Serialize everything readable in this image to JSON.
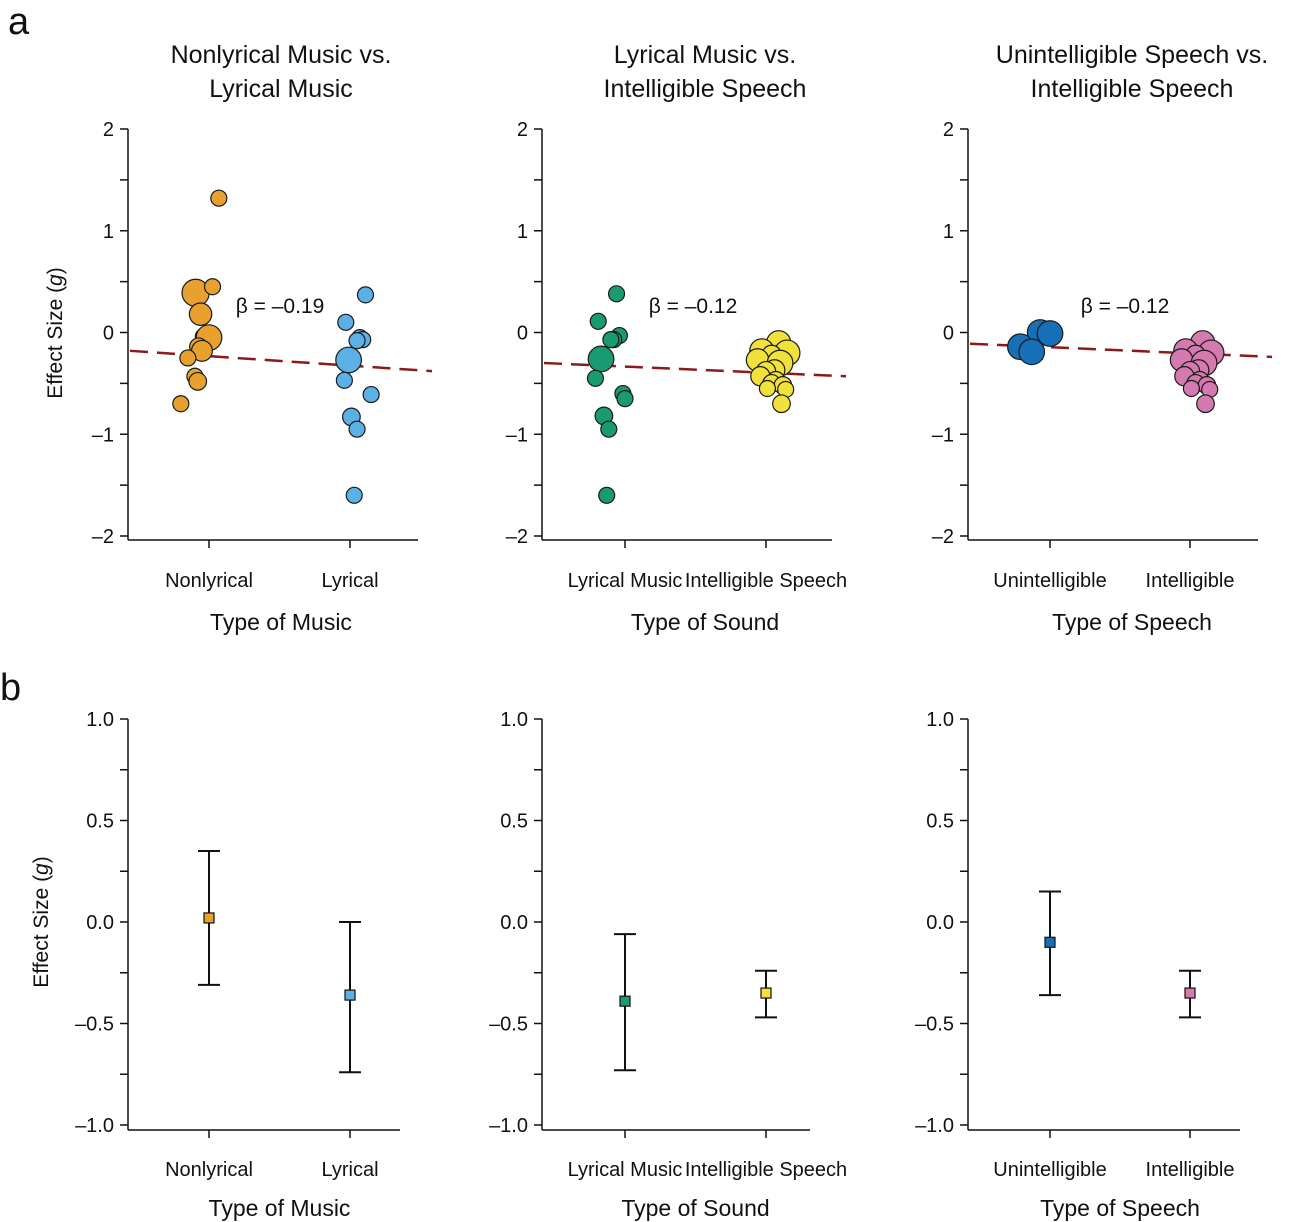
{
  "panel_letters": [
    "a",
    "b"
  ],
  "y_axis_title": "Effect Size (",
  "y_axis_italic": "g",
  "y_axis_close": ")",
  "chart_data": [
    {
      "panel": "a",
      "type": "scatter",
      "title": [
        "Nonlyrical Music vs.",
        "Lyrical Music"
      ],
      "xlabel": "Type of Music",
      "categories": [
        "Nonlyrical",
        "Lyrical"
      ],
      "ylim": [
        -2,
        2
      ],
      "yticks": [
        -2,
        -1,
        0,
        1,
        2
      ],
      "beta_label": "β = –0.19",
      "regression": {
        "y_left": -0.18,
        "y_right": -0.38,
        "color": "#8B1A1A"
      },
      "series": [
        {
          "category": "Nonlyrical",
          "color": "#E8A12E",
          "points": [
            {
              "x": 0.14,
              "y": 1.32,
              "s": 1
            },
            {
              "x": -0.19,
              "y": 0.39,
              "s": 1.7
            },
            {
              "x": 0.05,
              "y": 0.45,
              "s": 1
            },
            {
              "x": -0.12,
              "y": 0.18,
              "s": 1.4
            },
            {
              "x": -0.08,
              "y": -0.04,
              "s": 1
            },
            {
              "x": 0.0,
              "y": -0.05,
              "s": 1.6
            },
            {
              "x": -0.15,
              "y": -0.14,
              "s": 1.1
            },
            {
              "x": -0.1,
              "y": -0.18,
              "s": 1.3
            },
            {
              "x": -0.3,
              "y": -0.25,
              "s": 1
            },
            {
              "x": -0.2,
              "y": -0.43,
              "s": 1
            },
            {
              "x": -0.16,
              "y": -0.48,
              "s": 1.1
            },
            {
              "x": -0.4,
              "y": -0.7,
              "s": 1
            }
          ]
        },
        {
          "category": "Lyrical",
          "color": "#5BB0E6",
          "points": [
            {
              "x": 0.22,
              "y": 0.37,
              "s": 1
            },
            {
              "x": -0.06,
              "y": 0.1,
              "s": 1
            },
            {
              "x": 0.14,
              "y": -0.05,
              "s": 1
            },
            {
              "x": 0.18,
              "y": -0.07,
              "s": 1
            },
            {
              "x": 0.1,
              "y": -0.08,
              "s": 1
            },
            {
              "x": -0.02,
              "y": -0.27,
              "s": 1.6
            },
            {
              "x": -0.08,
              "y": -0.47,
              "s": 1
            },
            {
              "x": 0.3,
              "y": -0.61,
              "s": 1
            },
            {
              "x": 0.02,
              "y": -0.83,
              "s": 1.1
            },
            {
              "x": 0.1,
              "y": -0.95,
              "s": 1
            },
            {
              "x": 0.06,
              "y": -1.6,
              "s": 1
            }
          ]
        }
      ]
    },
    {
      "panel": "a",
      "type": "scatter",
      "title": [
        "Lyrical Music vs.",
        "Intelligible Speech"
      ],
      "xlabel": "Type of Sound",
      "categories": [
        "Lyrical Music",
        "Intelligible Speech"
      ],
      "ylim": [
        -2,
        2
      ],
      "yticks": [
        -2,
        -1,
        0,
        1,
        2
      ],
      "beta_label": "β = –0.12",
      "regression": {
        "y_left": -0.3,
        "y_right": -0.43,
        "color": "#8B1A1A"
      },
      "series": [
        {
          "category": "Lyrical Music",
          "color": "#1A9A70",
          "points": [
            {
              "x": -0.12,
              "y": 0.38,
              "s": 1
            },
            {
              "x": -0.38,
              "y": 0.11,
              "s": 1
            },
            {
              "x": -0.08,
              "y": -0.03,
              "s": 1
            },
            {
              "x": -0.16,
              "y": -0.07,
              "s": 1
            },
            {
              "x": -0.2,
              "y": -0.07,
              "s": 1
            },
            {
              "x": -0.34,
              "y": -0.26,
              "s": 1.6
            },
            {
              "x": -0.42,
              "y": -0.45,
              "s": 1
            },
            {
              "x": -0.03,
              "y": -0.6,
              "s": 1
            },
            {
              "x": 0.0,
              "y": -0.65,
              "s": 1
            },
            {
              "x": -0.3,
              "y": -0.82,
              "s": 1.1
            },
            {
              "x": -0.23,
              "y": -0.95,
              "s": 1
            },
            {
              "x": -0.26,
              "y": -1.6,
              "s": 1
            }
          ]
        },
        {
          "category": "Intelligible Speech",
          "color": "#F1E13C",
          "points": [
            {
              "x": 0.18,
              "y": -0.1,
              "s": 1.5
            },
            {
              "x": -0.06,
              "y": -0.18,
              "s": 1.5
            },
            {
              "x": 0.3,
              "y": -0.2,
              "s": 1.6
            },
            {
              "x": 0.08,
              "y": -0.22,
              "s": 1.2
            },
            {
              "x": -0.12,
              "y": -0.27,
              "s": 1.4
            },
            {
              "x": 0.2,
              "y": -0.3,
              "s": 1.6
            },
            {
              "x": 0.12,
              "y": -0.37,
              "s": 1.3
            },
            {
              "x": 0.0,
              "y": -0.38,
              "s": 1.2
            },
            {
              "x": -0.08,
              "y": -0.43,
              "s": 1.2
            },
            {
              "x": 0.14,
              "y": -0.47,
              "s": 1.1
            },
            {
              "x": 0.08,
              "y": -0.5,
              "s": 1.1
            },
            {
              "x": 0.24,
              "y": -0.52,
              "s": 1.1
            },
            {
              "x": 0.28,
              "y": -0.56,
              "s": 1
            },
            {
              "x": 0.02,
              "y": -0.55,
              "s": 1
            },
            {
              "x": 0.22,
              "y": -0.7,
              "s": 1.1
            }
          ]
        }
      ]
    },
    {
      "panel": "a",
      "type": "scatter",
      "title": [
        "Unintelligible Speech vs.",
        "Intelligible Speech"
      ],
      "xlabel": "Type of Speech",
      "categories": [
        "Unintelligible",
        "Intelligible"
      ],
      "ylim": [
        -2,
        2
      ],
      "yticks": [
        -2,
        -1,
        0,
        1,
        2
      ],
      "beta_label": "β = –0.12",
      "regression": {
        "y_left": -0.11,
        "y_right": -0.24,
        "color": "#8B1A1A"
      },
      "series": [
        {
          "category": "Unintelligible",
          "color": "#1670B8",
          "points": [
            {
              "x": -0.14,
              "y": 0.0,
              "s": 1.6
            },
            {
              "x": 0.0,
              "y": -0.01,
              "s": 1.6
            },
            {
              "x": -0.42,
              "y": -0.14,
              "s": 1.6
            },
            {
              "x": -0.26,
              "y": -0.19,
              "s": 1.6
            }
          ]
        },
        {
          "category": "Intelligible",
          "color": "#D47AAE",
          "points": [
            {
              "x": 0.18,
              "y": -0.1,
              "s": 1.5
            },
            {
              "x": -0.06,
              "y": -0.18,
              "s": 1.5
            },
            {
              "x": 0.3,
              "y": -0.2,
              "s": 1.6
            },
            {
              "x": 0.08,
              "y": -0.22,
              "s": 1.2
            },
            {
              "x": -0.12,
              "y": -0.27,
              "s": 1.4
            },
            {
              "x": 0.2,
              "y": -0.3,
              "s": 1.6
            },
            {
              "x": 0.12,
              "y": -0.37,
              "s": 1.3
            },
            {
              "x": 0.0,
              "y": -0.38,
              "s": 1.2
            },
            {
              "x": -0.08,
              "y": -0.43,
              "s": 1.2
            },
            {
              "x": 0.14,
              "y": -0.47,
              "s": 1.1
            },
            {
              "x": 0.08,
              "y": -0.5,
              "s": 1.1
            },
            {
              "x": 0.24,
              "y": -0.52,
              "s": 1.1
            },
            {
              "x": 0.28,
              "y": -0.56,
              "s": 1
            },
            {
              "x": 0.02,
              "y": -0.55,
              "s": 1
            },
            {
              "x": 0.22,
              "y": -0.7,
              "s": 1.1
            }
          ]
        }
      ]
    },
    {
      "panel": "b",
      "type": "errorbar",
      "xlabel": "Type of Music",
      "categories": [
        "Nonlyrical",
        "Lyrical"
      ],
      "ylim": [
        -1.0,
        1.0
      ],
      "yticks": [
        "1.0",
        "0.5",
        "0.0",
        "–0.5",
        "–1.0"
      ],
      "points": [
        {
          "category": "Nonlyrical",
          "mean": 0.02,
          "lower": -0.31,
          "upper": 0.35,
          "color": "#E8A12E"
        },
        {
          "category": "Lyrical",
          "mean": -0.36,
          "lower": -0.74,
          "upper": 0.0,
          "color": "#5BB0E6"
        }
      ]
    },
    {
      "panel": "b",
      "type": "errorbar",
      "xlabel": "Type of Sound",
      "categories": [
        "Lyrical Music",
        "Intelligible Speech"
      ],
      "ylim": [
        -1.0,
        1.0
      ],
      "yticks": [
        "1.0",
        "0.5",
        "0.0",
        "–0.5",
        "–1.0"
      ],
      "points": [
        {
          "category": "Lyrical Music",
          "mean": -0.39,
          "lower": -0.73,
          "upper": -0.06,
          "color": "#1A9A70"
        },
        {
          "category": "Intelligible Speech",
          "mean": -0.35,
          "lower": -0.47,
          "upper": -0.24,
          "color": "#F1E13C"
        }
      ]
    },
    {
      "panel": "b",
      "type": "errorbar",
      "xlabel": "Type of Speech",
      "categories": [
        "Unintelligible",
        "Intelligible"
      ],
      "ylim": [
        -1.0,
        1.0
      ],
      "yticks": [
        "1.0",
        "0.5",
        "0.0",
        "–0.5",
        "–1.0"
      ],
      "points": [
        {
          "category": "Unintelligible",
          "mean": -0.1,
          "lower": -0.36,
          "upper": 0.15,
          "color": "#1670B8"
        },
        {
          "category": "Intelligible",
          "mean": -0.35,
          "lower": -0.47,
          "upper": -0.24,
          "color": "#D47AAE"
        }
      ]
    }
  ]
}
